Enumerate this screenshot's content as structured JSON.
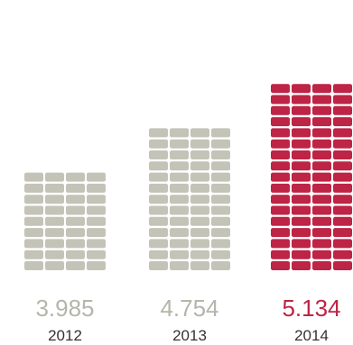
{
  "chart_data": {
    "type": "bar",
    "categories": [
      "2012",
      "2013",
      "2014"
    ],
    "values": [
      3.985,
      4.754,
      5.134
    ],
    "value_labels": [
      "3.985",
      "4.754",
      "5.134"
    ],
    "icon_rows": [
      9,
      13,
      17
    ],
    "icon_columns": 4,
    "colors": [
      "#c3c3b8",
      "#c3c3b8",
      "#be2445"
    ],
    "value_label_colors": [
      "#b5b5aa",
      "#b5b5aa",
      "#be2445"
    ]
  }
}
